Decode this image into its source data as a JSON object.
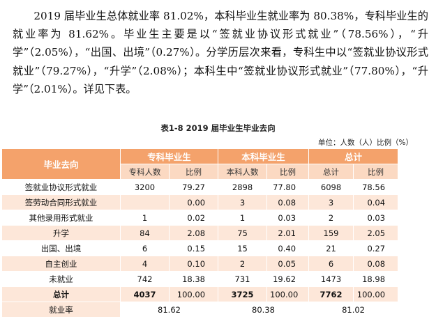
{
  "paragraph": "2019 届毕业生总体就业率 81.02%，本科毕业生就业率为 80.38%，专科毕业生的就业率为 81.62%。毕业生主要是以“签就业协议形式就业”（78.56%），“升学”（2.05%），“出国、出境”（0.27%）。分学历层次来看，专科生中以“签就业协议形式就业”（79.27%），“升学”（2.08%）；本科生中“签就业协议形式就业”（77.80%），“升学”（2.01%）。详见下表。",
  "caption": "表1-8   2019 届毕业生毕业去向",
  "unit": "单位：人数（人）比例（%）",
  "table": {
    "header_first": "毕业去向",
    "groups": [
      "专科毕业生",
      "本科毕业生",
      "总计"
    ],
    "subheaders": [
      "专科人数",
      "比例",
      "本科人数",
      "比例",
      "总计",
      "比例"
    ],
    "rows": [
      {
        "name": "签就业协议形式就业",
        "v": [
          "3200",
          "79.27",
          "2898",
          "77.80",
          "6098",
          "78.56"
        ]
      },
      {
        "name": "签劳动合同形式就业",
        "v": [
          "",
          "0.00",
          "3",
          "0.08",
          "3",
          "0.04"
        ]
      },
      {
        "name": "其他录用形式就业",
        "v": [
          "1",
          "0.02",
          "1",
          "0.03",
          "2",
          "0.03"
        ]
      },
      {
        "name": "升学",
        "v": [
          "84",
          "2.08",
          "75",
          "2.01",
          "159",
          "2.05"
        ]
      },
      {
        "name": "出国、出境",
        "v": [
          "6",
          "0.15",
          "15",
          "0.40",
          "21",
          "0.27"
        ]
      },
      {
        "name": "自主创业",
        "v": [
          "4",
          "0.10",
          "2",
          "0.05",
          "6",
          "0.08"
        ]
      },
      {
        "name": "未就业",
        "v": [
          "742",
          "18.38",
          "731",
          "19.62",
          "1473",
          "18.98"
        ]
      },
      {
        "name": "总计",
        "v": [
          "4037",
          "100.00",
          "3725",
          "100.00",
          "7762",
          "100.00"
        ]
      }
    ],
    "rate_row": {
      "name": "就业率",
      "v": [
        "81.62",
        "80.38",
        "81.02"
      ]
    }
  },
  "colors": {
    "header": "#f4a26b",
    "subheader": "#fbd9c2",
    "stripe": "#fde7d9"
  }
}
